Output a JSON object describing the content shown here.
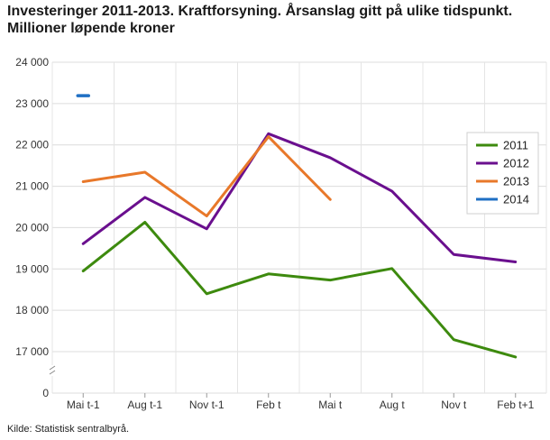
{
  "title_line1": "Investeringer 2011-2013. Kraftforsyning. Årsanslag gitt på ulike tidspunkt.",
  "title_line2": "Millioner løpende kroner",
  "source": "Kilde: Statistisk sentralbyrå.",
  "chart_data": {
    "type": "line",
    "categories": [
      "Mai t-1",
      "Aug t-1",
      "Nov t-1",
      "Feb t",
      "Mai t",
      "Aug t",
      "Nov t",
      "Feb t+1"
    ],
    "y_ticks": [
      "24 000",
      "23 000",
      "22 000",
      "21 000",
      "20 000",
      "19 000",
      "18 000",
      "17 000",
      "0"
    ],
    "ylim": [
      17000,
      24000
    ],
    "axis_break": true,
    "grid": true,
    "legend_position": "right",
    "series": [
      {
        "name": "2011",
        "color": "#3d8a0e",
        "values": [
          18950,
          20130,
          18400,
          18880,
          18730,
          19010,
          17290,
          16870
        ]
      },
      {
        "name": "2012",
        "color": "#6a0f8e",
        "values": [
          19610,
          20730,
          19970,
          22270,
          21690,
          20880,
          19350,
          19170
        ]
      },
      {
        "name": "2013",
        "color": "#e8782a",
        "values": [
          21110,
          21340,
          20280,
          22200,
          20680,
          null,
          null,
          null
        ]
      },
      {
        "name": "2014",
        "color": "#1f6fc4",
        "values": [
          23190,
          null,
          null,
          null,
          null,
          null,
          null,
          null
        ]
      }
    ]
  }
}
